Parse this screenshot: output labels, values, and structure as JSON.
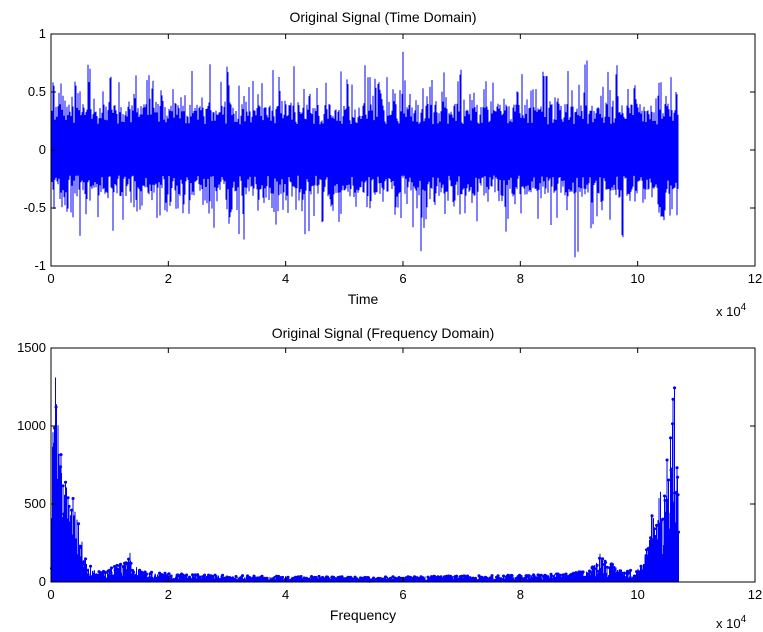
{
  "chart_data": [
    {
      "type": "line",
      "title": "Original Signal (Time Domain)",
      "xlabel": "Time",
      "ylabel": "",
      "xlim": [
        0,
        120000
      ],
      "ylim": [
        -1,
        1
      ],
      "x_exponent_label": "x 10",
      "x_exponent_power": "4",
      "xticks": [
        0,
        2,
        4,
        6,
        8,
        10,
        12
      ],
      "yticks": [
        -1,
        -0.5,
        0,
        0.5,
        1
      ],
      "grid": false,
      "color": "#0000ff",
      "series": [
        {
          "sample_count": 107000,
          "envelope_every": 1000,
          "max": [
            0.62,
            0.81,
            0.74,
            0.58,
            0.66,
            0.52,
            0.79,
            0.63,
            0.55,
            0.48,
            0.71,
            0.59,
            0.54,
            0.5,
            0.68,
            0.85,
            0.66,
            0.61,
            0.57,
            0.69,
            0.54,
            0.64,
            0.52,
            0.6,
            0.73,
            0.58,
            0.51,
            0.8,
            0.66,
            0.57,
            0.86,
            0.62,
            0.59,
            0.55,
            0.77,
            0.6,
            0.53,
            0.72,
            0.64,
            0.58,
            0.69,
            0.74,
            0.57,
            0.66,
            0.52,
            0.79,
            0.6,
            0.7,
            0.56,
            0.82,
            0.64,
            0.58,
            0.61,
            0.88,
            0.73,
            0.62,
            0.55,
            0.7,
            0.57,
            0.6,
            0.9,
            0.67,
            0.59,
            0.74,
            0.63,
            0.56,
            0.72,
            0.61,
            0.54,
            0.76,
            0.58,
            0.52,
            0.67,
            0.56,
            0.71,
            0.6,
            0.55,
            0.79,
            0.62,
            0.57,
            0.68,
            0.6,
            0.53,
            0.77,
            0.65,
            0.58,
            0.7,
            0.56,
            0.73,
            0.62,
            0.57,
            0.81,
            0.64,
            0.59,
            0.69,
            0.55,
            0.75,
            0.61,
            0.66,
            0.57,
            0.72,
            0.6,
            0.54,
            0.68,
            0.59,
            0.63,
            0.57
          ],
          "min": [
            -0.66,
            -0.58,
            -0.72,
            -0.6,
            -0.95,
            -0.63,
            -0.56,
            -0.79,
            -0.61,
            -0.54,
            -0.7,
            -0.58,
            -0.75,
            -0.62,
            -0.55,
            -0.68,
            -0.6,
            -0.52,
            -0.64,
            -0.57,
            -0.82,
            -0.61,
            -0.55,
            -0.69,
            -0.97,
            -0.63,
            -0.57,
            -0.74,
            -0.6,
            -0.53,
            -0.66,
            -0.59,
            -0.8,
            -0.62,
            -0.56,
            -0.7,
            -0.6,
            -0.54,
            -0.93,
            -0.66,
            -0.58,
            -0.62,
            -0.55,
            -0.76,
            -0.6,
            -0.53,
            -0.68,
            -0.57,
            -0.84,
            -0.62,
            -0.56,
            -0.71,
            -0.6,
            -0.54,
            -0.66,
            -0.92,
            -0.62,
            -0.57,
            -0.73,
            -0.6,
            -0.55,
            -0.69,
            -0.58,
            -0.88,
            -0.63,
            -0.56,
            -0.7,
            -0.59,
            -0.53,
            -0.77,
            -0.61,
            -0.55,
            -0.66,
            -0.58,
            -0.86,
            -0.62,
            -0.56,
            -0.72,
            -0.6,
            -0.54,
            -0.68,
            -0.58,
            -0.81,
            -0.63,
            -0.56,
            -0.7,
            -0.59,
            -0.53,
            -0.67,
            -0.94,
            -0.62,
            -0.56,
            -0.72,
            -0.6,
            -0.55,
            -0.66,
            -0.58,
            -0.79,
            -0.62,
            -0.56,
            -0.7,
            -0.59,
            -0.54,
            -0.68,
            -0.83,
            -0.61,
            -0.57
          ]
        }
      ]
    },
    {
      "type": "line",
      "title": "Original Signal (Frequency Domain)",
      "xlabel": "Frequency",
      "ylabel": "",
      "xlim": [
        0,
        120000
      ],
      "ylim": [
        0,
        1500
      ],
      "x_exponent_label": "x 10",
      "x_exponent_power": "4",
      "xticks": [
        0,
        2,
        4,
        6,
        8,
        10,
        12
      ],
      "yticks": [
        0,
        500,
        1000,
        1500
      ],
      "grid": false,
      "color": "#0000ff",
      "marker": "dot",
      "series": [
        {
          "sample_count": 107000,
          "symmetric": true,
          "envelope_x": [
            0,
            150,
            300,
            500,
            700,
            900,
            1100,
            1300,
            1500,
            1700,
            1900,
            2100,
            2400,
            2700,
            3000,
            3300,
            3600,
            3900,
            4200,
            4500,
            4800,
            5100,
            5400,
            5700,
            6000,
            6500,
            7000,
            8000,
            9000,
            10000,
            11000,
            12000,
            12800,
            13400,
            14000,
            14800,
            16000,
            18000,
            20000,
            25000,
            30000,
            35000,
            40000,
            45000,
            50000,
            53500
          ],
          "envelope_y": [
            420,
            650,
            980,
            1180,
            1380,
            1250,
            1150,
            1200,
            1020,
            880,
            820,
            760,
            690,
            640,
            600,
            660,
            560,
            520,
            470,
            540,
            420,
            300,
            240,
            180,
            130,
            110,
            95,
            80,
            70,
            90,
            110,
            130,
            150,
            210,
            150,
            95,
            70,
            60,
            55,
            48,
            42,
            40,
            38,
            36,
            34,
            33
          ]
        }
      ]
    }
  ]
}
